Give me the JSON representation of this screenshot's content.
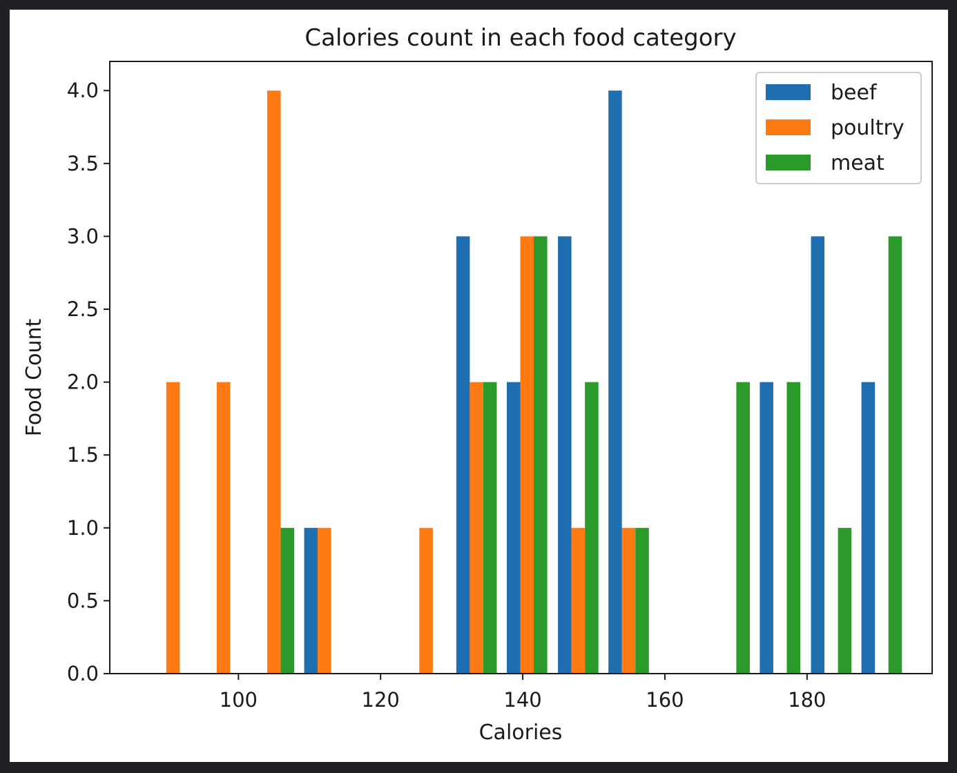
{
  "chart_data": {
    "type": "bar",
    "title": "Calories count in each food category",
    "xlabel": "Calories",
    "ylabel": "Food Count",
    "xlim": [
      81.9,
      197.6
    ],
    "ylim": [
      0,
      4.2
    ],
    "xticks": [
      100,
      120,
      140,
      160,
      180
    ],
    "yticks": [
      "0.0",
      "0.5",
      "1.0",
      "1.5",
      "2.0",
      "2.5",
      "3.0",
      "3.5",
      "4.0"
    ],
    "legend_position": "top-right",
    "bin_width_calories": 7.12,
    "bins": [
      {
        "x": 90.8,
        "values": [
          0,
          2,
          0
        ]
      },
      {
        "x": 97.9,
        "values": [
          0,
          2,
          0
        ]
      },
      {
        "x": 105.0,
        "values": [
          0,
          4,
          1
        ]
      },
      {
        "x": 112.1,
        "values": [
          1,
          1,
          0
        ]
      },
      {
        "x": 119.3,
        "values": [
          0,
          0,
          0
        ]
      },
      {
        "x": 126.4,
        "values": [
          0,
          1,
          0
        ]
      },
      {
        "x": 133.5,
        "values": [
          3,
          2,
          2
        ]
      },
      {
        "x": 140.6,
        "values": [
          2,
          3,
          3
        ]
      },
      {
        "x": 147.8,
        "values": [
          3,
          1,
          2
        ]
      },
      {
        "x": 154.9,
        "values": [
          4,
          1,
          1
        ]
      },
      {
        "x": 162.0,
        "values": [
          0,
          0,
          0
        ]
      },
      {
        "x": 169.1,
        "values": [
          0,
          0,
          2
        ]
      },
      {
        "x": 176.2,
        "values": [
          2,
          0,
          2
        ]
      },
      {
        "x": 183.4,
        "values": [
          3,
          0,
          1
        ]
      },
      {
        "x": 190.5,
        "values": [
          2,
          0,
          3
        ]
      }
    ],
    "series": [
      {
        "name": "beef",
        "color": "#1f6fb0"
      },
      {
        "name": "poultry",
        "color": "#ff7a12"
      },
      {
        "name": "meat",
        "color": "#2b9a2b"
      }
    ]
  }
}
